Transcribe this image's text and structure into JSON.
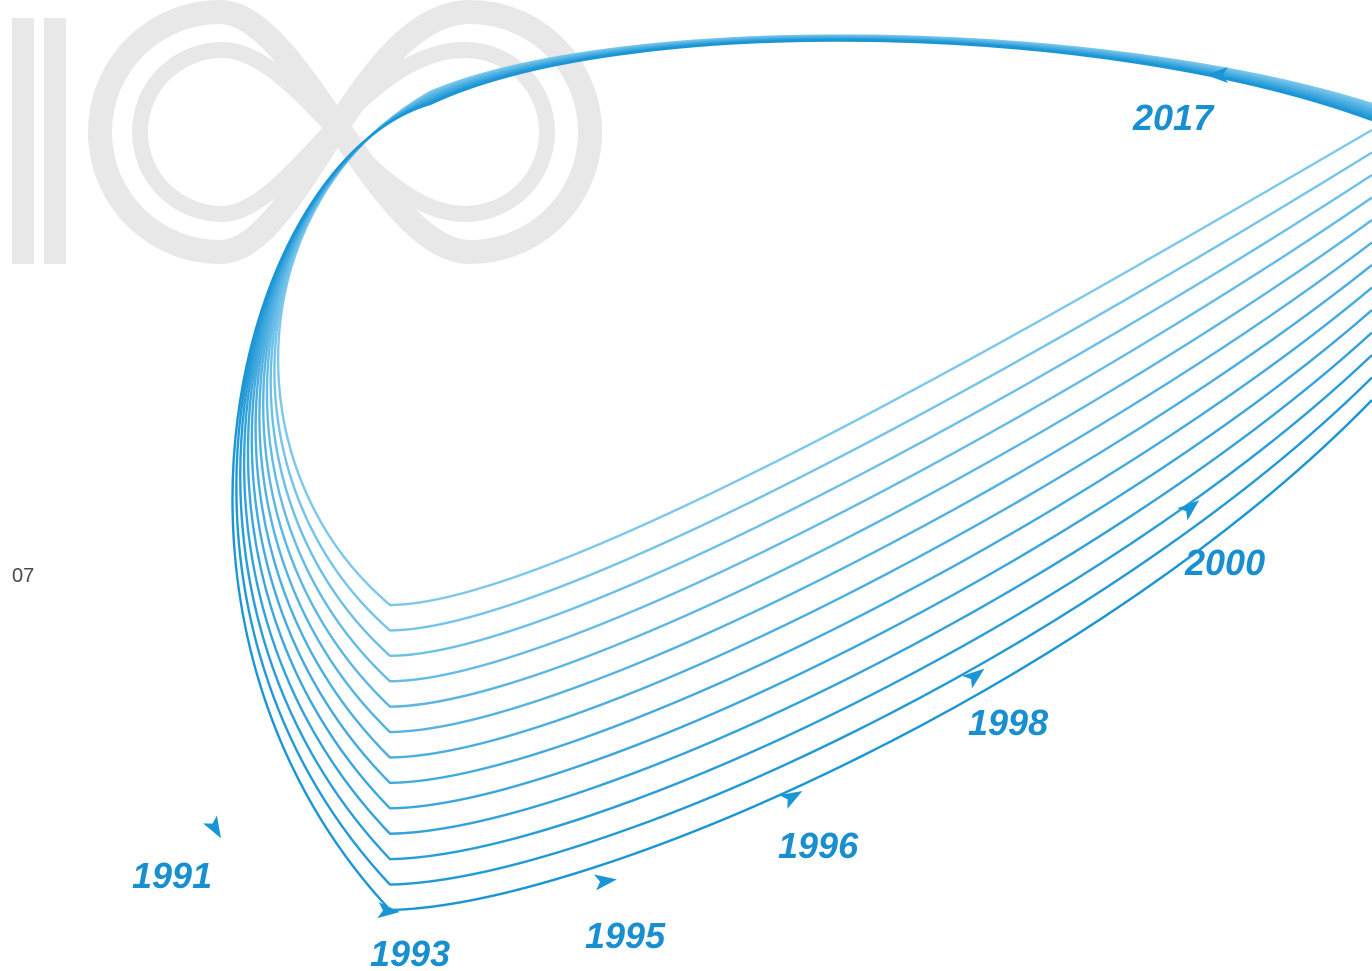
{
  "page_number": "07",
  "logo": {
    "name": "brand-logo-mark"
  },
  "colors": {
    "accent": "#1a95d5",
    "accent_light": "#7cc7ec",
    "logo_gray": "#e8e8e8",
    "label": "#1a8fd0"
  },
  "timeline": {
    "years": [
      "1991",
      "1993",
      "1995",
      "1996",
      "1998",
      "2000",
      "2017"
    ]
  }
}
